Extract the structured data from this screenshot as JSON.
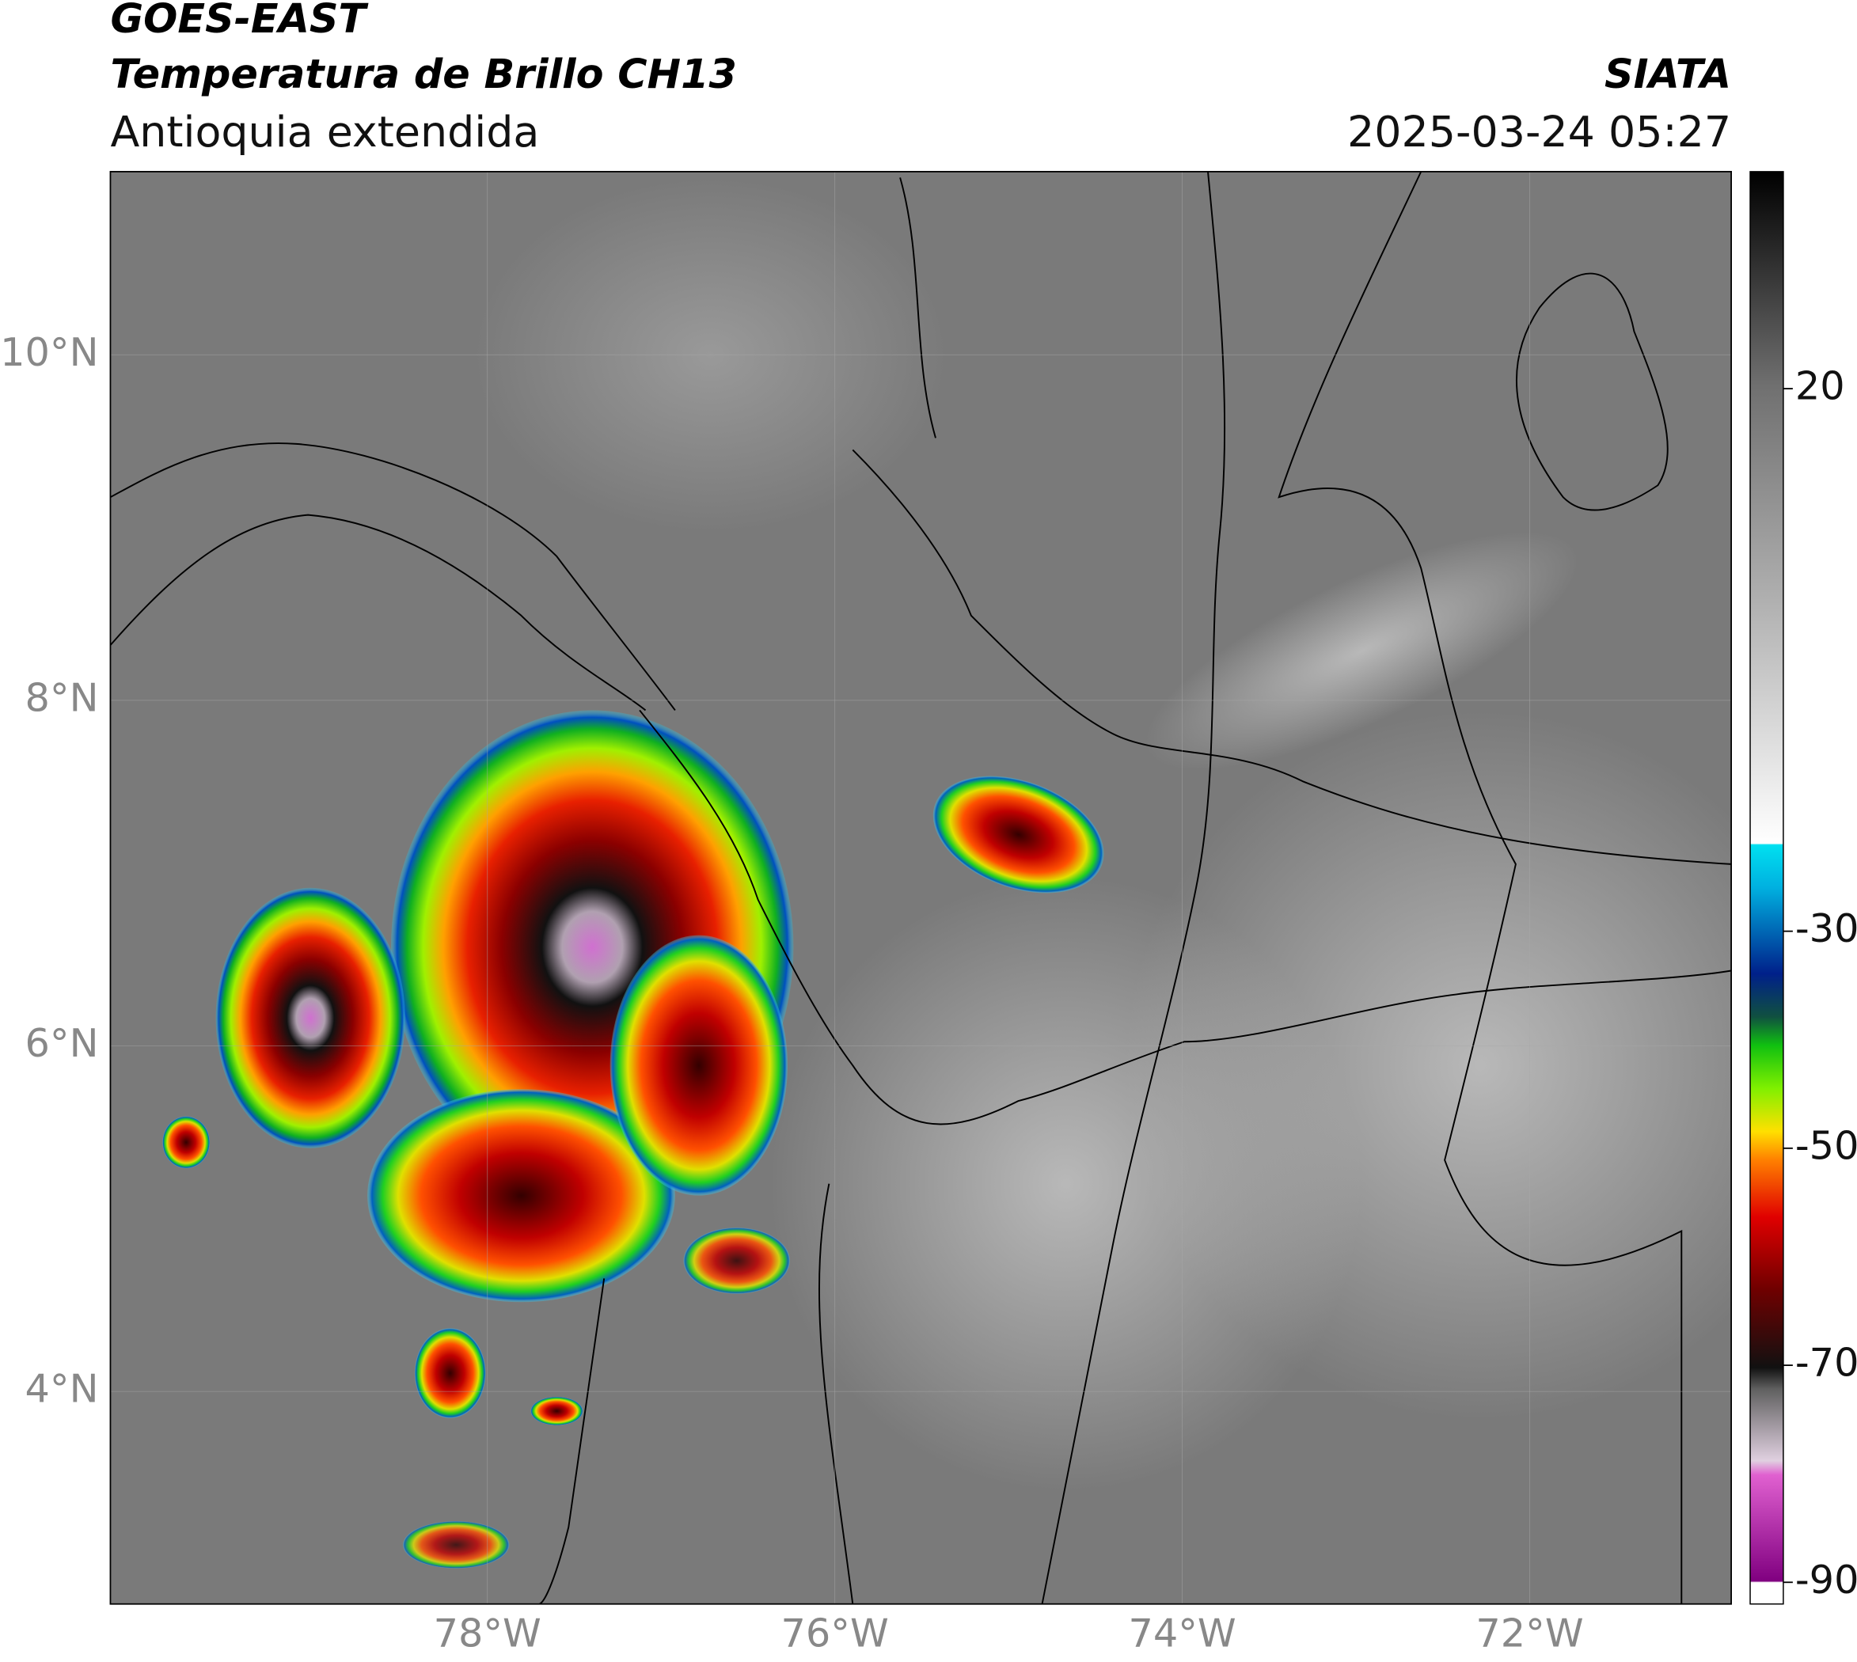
{
  "chart_data": {
    "type": "map",
    "title": "GOES-EAST",
    "subtitle": "Temperatura de Brillo CH13",
    "region": "Antioquia extendida",
    "source": "SIATA",
    "datetime": "2025-03-24 05:27",
    "xlim": [
      -80.17,
      -70.84
    ],
    "ylim": [
      2.77,
      11.06
    ],
    "xticks": [
      {
        "value": -78,
        "label": "78°W"
      },
      {
        "value": -76,
        "label": "76°W"
      },
      {
        "value": -74,
        "label": "74°W"
      },
      {
        "value": -72,
        "label": "72°W"
      }
    ],
    "yticks": [
      {
        "value": 4,
        "label": "4°N"
      },
      {
        "value": 6,
        "label": "6°N"
      },
      {
        "value": 8,
        "label": "8°N"
      },
      {
        "value": 10,
        "label": "10°N"
      }
    ],
    "colorbar": {
      "clim": [
        -92,
        40
      ],
      "ticks": [
        -90,
        -70,
        -50,
        -30,
        20
      ]
    },
    "grid": true
  }
}
